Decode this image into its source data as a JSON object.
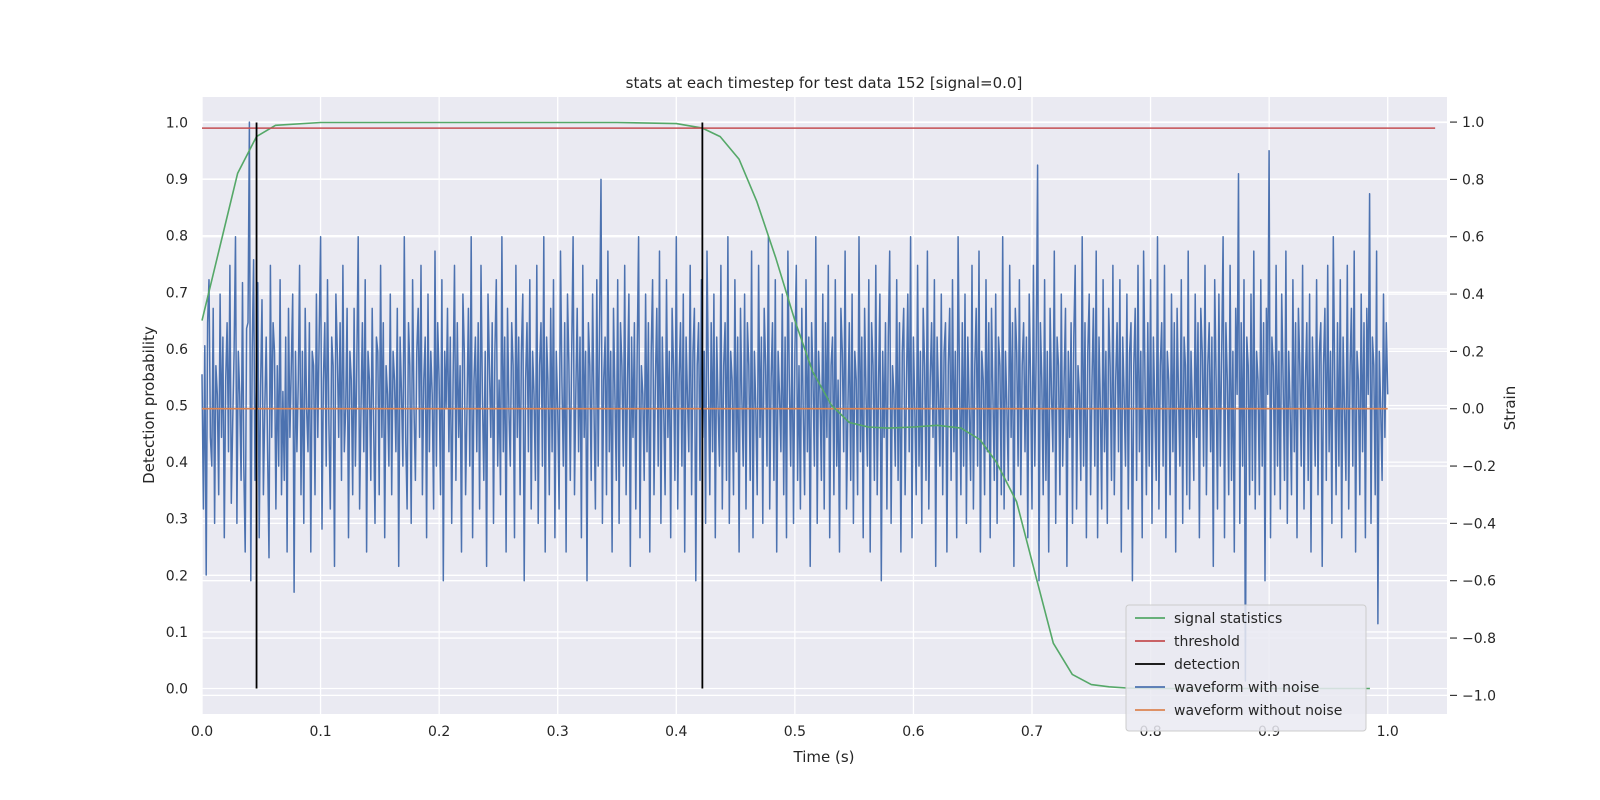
{
  "chart_data": {
    "type": "line",
    "title": "stats at each timestep for test data 152 [signal=0.0]",
    "xlabel": "Time (s)",
    "ylabel_left": "Detection probability",
    "ylabel_right": "Strain",
    "xlim": [
      0.0,
      1.05
    ],
    "ylim_left": [
      -0.045,
      1.045
    ],
    "ylim_right": [
      -1.065,
      1.0875
    ],
    "x_ticks": [
      "0.0",
      "0.1",
      "0.2",
      "0.3",
      "0.4",
      "0.5",
      "0.6",
      "0.7",
      "0.8",
      "0.9",
      "1.0"
    ],
    "y_ticks_left": [
      "0.0",
      "0.1",
      "0.2",
      "0.3",
      "0.4",
      "0.5",
      "0.6",
      "0.7",
      "0.8",
      "0.9",
      "1.0"
    ],
    "y_ticks_right": [
      "−1.0",
      "−0.8",
      "−0.6",
      "−0.4",
      "−0.2",
      "0.0",
      "0.2",
      "0.4",
      "0.6",
      "0.8",
      "1.0"
    ],
    "grid": true,
    "legend_position": "lower-right",
    "threshold": 0.99,
    "detections": [
      0.046,
      0.422
    ],
    "series": [
      {
        "name": "signal statistics",
        "axis": "left",
        "color": "#55a868",
        "x": [
          0.0,
          0.015,
          0.03,
          0.046,
          0.062,
          0.1,
          0.2,
          0.3,
          0.35,
          0.4,
          0.422,
          0.437,
          0.453,
          0.468,
          0.484,
          0.5,
          0.515,
          0.531,
          0.546,
          0.562,
          0.578,
          0.6,
          0.62,
          0.64,
          0.656,
          0.67,
          0.687,
          0.703,
          0.718,
          0.734,
          0.75,
          0.765,
          0.78,
          0.8,
          0.85,
          0.9,
          0.95,
          0.985
        ],
        "values": [
          0.65,
          0.78,
          0.91,
          0.975,
          0.995,
          1.0,
          1.0,
          1.0,
          1.0,
          0.998,
          0.99,
          0.975,
          0.935,
          0.86,
          0.76,
          0.65,
          0.56,
          0.5,
          0.47,
          0.462,
          0.46,
          0.462,
          0.465,
          0.46,
          0.44,
          0.4,
          0.33,
          0.2,
          0.08,
          0.025,
          0.007,
          0.003,
          0.001,
          0.0,
          0.0,
          0.0,
          0.0,
          0.0
        ]
      },
      {
        "name": "threshold",
        "axis": "left",
        "color": "#c44e52",
        "x": [
          0.0,
          1.04
        ],
        "values": [
          0.99,
          0.99
        ]
      },
      {
        "name": "detection",
        "axis": "left",
        "color": "#000000",
        "x": [
          0.046,
          0.422
        ],
        "values": [
          1.0,
          1.0
        ]
      },
      {
        "name": "waveform with noise",
        "axis": "right",
        "color": "#4c72b0",
        "x_range": [
          0.0,
          1.0
        ],
        "values": [
          0.12,
          -0.35,
          0.22,
          -0.58,
          0.3,
          0.45,
          -0.1,
          -0.2,
          0.35,
          -0.4,
          0.15,
          0.05,
          -0.3,
          0.4,
          -0.1,
          0.25,
          -0.45,
          0.1,
          0.3,
          -0.15,
          0.5,
          -0.33,
          -0.05,
          0.2,
          0.6,
          -0.4,
          0.2,
          0.05,
          -0.25,
          0.44,
          -0.2,
          -0.5,
          0.28,
          0.3,
          1.0,
          -0.6,
          0.2,
          0.52,
          -0.25,
          0.1,
          0.44,
          -0.45,
          0.08,
          0.38,
          -0.3,
          0.0,
          0.25,
          -0.15,
          -0.52,
          0.5,
          -0.1,
          0.3,
          0.2,
          -0.35,
          0.15,
          -0.2,
          0.45,
          -0.3,
          0.06,
          -0.25,
          0.25,
          -0.5,
          0.35,
          -0.1,
          0.15,
          0.4,
          -0.64,
          0.2,
          -0.15,
          0.1,
          0.5,
          -0.3,
          0.2,
          -0.4,
          0.35,
          0.0,
          -0.15,
          0.3,
          -0.5,
          0.2,
          0.15,
          -0.3,
          0.4,
          -0.1,
          0.26,
          0.6,
          -0.42,
          0.1,
          0.3,
          -0.2,
          0.45,
          -0.05,
          -0.35,
          0.25,
          0.15,
          -0.55,
          0.4,
          0.2,
          -0.1,
          0.3,
          -0.25,
          0.5,
          -0.15,
          0.0,
          0.35,
          -0.45,
          0.2,
          0.1,
          -0.3,
          0.35,
          -0.2,
          0.15,
          0.6,
          -0.35,
          0.0,
          0.3,
          -0.15,
          0.45,
          -0.5,
          0.2,
          0.1,
          -0.25,
          0.35,
          -0.05,
          -0.4,
          0.25,
          0.2,
          -0.3,
          0.5,
          -0.1,
          0.3,
          -0.45,
          0.15,
          0.05,
          -0.2,
          0.4,
          -0.3,
          0.2,
          0.1,
          -0.15,
          0.35,
          -0.55,
          0.25,
          0.05,
          -0.2,
          0.6,
          -0.1,
          -0.35,
          0.3,
          0.15,
          -0.4,
          0.45,
          0.0,
          -0.25,
          0.2,
          0.35,
          -0.1,
          0.5,
          -0.3,
          0.1,
          0.25,
          -0.45,
          0.4,
          -0.15,
          0.2,
          0.05,
          -0.35,
          0.55,
          -0.2,
          0.3,
          0.1,
          -0.3,
          0.45,
          -0.6,
          0.2,
          0.0,
          0.35,
          -0.15,
          0.25,
          -0.4,
          0.1,
          0.5,
          -0.25,
          0.3,
          -0.1,
          0.15,
          -0.5,
          0.4,
          0.2,
          -0.3,
          0.0,
          0.35,
          -0.2,
          0.6,
          -0.45,
          0.1,
          0.25,
          -0.15,
          0.3,
          -0.35,
          0.5,
          0.05,
          -0.25,
          0.2,
          -0.55,
          0.4,
          0.15,
          -0.1,
          0.3,
          -0.4,
          0.2,
          0.45,
          -0.2,
          0.1,
          -0.3,
          0.6,
          -0.15,
          0.25,
          -0.5,
          0.35,
          0.0,
          -0.2,
          0.3,
          0.15,
          -0.45,
          0.5,
          -0.1,
          0.25,
          -0.3,
          0.2,
          0.4,
          -0.6,
          0.1,
          0.3,
          -0.15,
          0.45,
          -0.35,
          0.2,
          0.05,
          -0.25,
          0.5,
          -0.4,
          0.15,
          0.3,
          -0.2,
          0.6,
          -0.5,
          0.25,
          0.1,
          -0.3,
          0.35,
          -0.15,
          0.45,
          -0.45,
          0.2,
          0.0,
          -0.35,
          0.55,
          0.1,
          -0.2,
          0.3,
          -0.5,
          0.4,
          0.15,
          -0.25,
          0.2,
          0.6,
          -0.3,
          0.05,
          0.35,
          -0.15,
          0.25,
          -0.45,
          0.5,
          -0.1,
          0.2,
          -0.6,
          0.3,
          0.15,
          -0.25,
          0.4,
          0.0,
          -0.35,
          0.45,
          -0.2,
          0.3,
          0.8,
          -0.4,
          0.1,
          0.25,
          -0.3,
          0.55,
          -0.15,
          0.2,
          -0.5,
          0.35,
          0.05,
          -0.25,
          0.45,
          -0.4,
          0.3,
          0.15,
          -0.2,
          0.5,
          -0.3,
          0.1,
          0.4,
          -0.55,
          0.25,
          -0.1,
          0.3,
          -0.35,
          0.2,
          0.6,
          -0.45,
          0.15,
          0.05,
          -0.25,
          0.4,
          -0.15,
          0.3,
          -0.5,
          0.2,
          0.45,
          -0.3,
          0.1,
          0.35,
          -0.2,
          0.55,
          -0.4,
          0.25,
          0.0,
          -0.3,
          0.45,
          -0.1,
          0.2,
          -0.45,
          0.35,
          0.15,
          -0.25,
          0.6,
          -0.35,
          0.1,
          0.3,
          -0.2,
          0.4,
          -0.5,
          0.25,
          0.05,
          -0.15,
          0.5,
          -0.3,
          0.2,
          0.35,
          -0.6,
          0.15,
          0.3,
          -0.25,
          0.45,
          -0.1,
          0.2,
          -0.4,
          0.55,
          0.1,
          -0.3,
          0.3,
          -0.15,
          0.4,
          -0.45,
          0.25,
          0.0,
          -0.2,
          0.5,
          -0.35,
          0.15,
          0.3,
          -0.25,
          0.6,
          -0.4,
          0.2,
          0.1,
          -0.3,
          0.45,
          -0.15,
          0.25,
          -0.5,
          0.35,
          0.05,
          -0.2,
          0.4,
          -0.35,
          0.3,
          0.15,
          -0.25,
          0.55,
          -0.45,
          0.2,
          0.0,
          -0.3,
          0.5,
          -0.1,
          0.25,
          -0.4,
          0.35,
          0.15,
          -0.2,
          0.6,
          -0.35,
          0.1,
          0.3,
          -0.25,
          0.45,
          -0.5,
          0.2,
          0.05,
          -0.15,
          0.4,
          -0.3,
          0.25,
          -0.45,
          0.55,
          0.1,
          -0.2,
          0.3,
          -0.4,
          0.2,
          0.5,
          -0.25,
          0.15,
          -0.35,
          0.35,
          0.0,
          -0.3,
          0.45,
          -0.15,
          0.25,
          -0.55,
          0.3,
          0.1,
          -0.2,
          0.6,
          -0.4,
          0.2,
          0.05,
          -0.25,
          0.4,
          -0.35,
          0.3,
          -0.1,
          0.5,
          -0.45,
          0.15,
          0.25,
          -0.3,
          0.45,
          -0.2,
          0.1,
          -0.5,
          0.35,
          0.2,
          -0.15,
          0.55,
          -0.35,
          0.0,
          0.3,
          -0.25,
          0.4,
          -0.4,
          0.2,
          0.1,
          -0.3,
          0.6,
          -0.15,
          0.25,
          -0.45,
          0.35,
          0.05,
          -0.2,
          0.45,
          -0.5,
          0.3,
          0.15,
          -0.25,
          0.5,
          -0.3,
          0.1,
          0.4,
          -0.6,
          0.2,
          -0.1,
          0.3,
          -0.35,
          0.25,
          0.55,
          -0.4,
          0.15,
          0.05,
          -0.2,
          0.45,
          -0.25,
          0.3,
          -0.5,
          0.2,
          0.35,
          -0.3,
          0.1,
          0.4,
          -0.15,
          0.6,
          -0.45,
          0.25,
          0.0,
          -0.3,
          0.5,
          -0.2,
          0.2,
          -0.4,
          0.35,
          0.15,
          -0.25,
          0.55,
          -0.35,
          0.1,
          0.3,
          -0.1,
          0.45,
          -0.55,
          0.25,
          0.05,
          -0.2,
          0.4,
          -0.3,
          0.2,
          0.3,
          -0.5,
          0.15,
          0.35,
          -0.25,
          0.45,
          -0.15,
          0.2,
          -0.45,
          0.6,
          0.1,
          -0.3,
          0.3,
          -0.2,
          0.4,
          -0.4,
          0.25,
          0.0,
          -0.25,
          0.5,
          -0.35,
          0.15,
          0.35,
          -0.2,
          0.55,
          -0.5,
          0.2,
          0.1,
          -0.3,
          0.45,
          -0.15,
          0.3,
          -0.45,
          0.35,
          0.05,
          -0.25,
          0.4,
          -0.4,
          0.25,
          0.15,
          -0.3,
          0.6,
          -0.35,
          0.2,
          0.0,
          -0.25,
          0.5,
          -0.1,
          0.3,
          -0.55,
          0.35,
          0.2,
          -0.2,
          0.45,
          -0.3,
          0.15,
          0.3,
          -0.15,
          0.25,
          -0.45,
          0.4,
          0.1,
          -0.35,
          0.5,
          -0.2,
          0.2,
          0.85,
          -0.6,
          0.3,
          0.1,
          -0.3,
          0.45,
          -0.25,
          0.2,
          -0.5,
          0.35,
          0.05,
          -0.15,
          0.55,
          -0.4,
          0.25,
          0.15,
          -0.3,
          0.4,
          -0.2,
          0.1,
          0.35,
          -0.55,
          0.2,
          -0.1,
          0.3,
          -0.4,
          0.25,
          0.5,
          -0.35,
          0.15,
          0.05,
          -0.25,
          0.6,
          -0.2,
          0.3,
          -0.45,
          0.2,
          0.4,
          -0.3,
          0.1,
          0.35,
          -0.2,
          0.55,
          -0.45,
          0.25,
          0.0,
          -0.35,
          0.45,
          -0.15,
          0.2,
          -0.4,
          0.35,
          0.15,
          -0.25,
          0.5,
          -0.3,
          0.1,
          0.3,
          -0.15,
          0.45,
          -0.5,
          0.25,
          0.05,
          -0.2,
          0.4,
          -0.35,
          0.2,
          0.3,
          -0.6,
          0.15,
          0.35,
          -0.25,
          0.5,
          -0.15,
          0.2,
          -0.45,
          0.55,
          0.1,
          -0.3,
          0.3,
          -0.2,
          0.45,
          -0.4,
          0.25,
          0.0,
          -0.25,
          0.6,
          -0.35,
          0.15,
          0.3,
          -0.2,
          0.5,
          -0.45,
          0.2,
          0.1,
          -0.3,
          0.4,
          -0.15,
          0.3,
          -0.5,
          0.35,
          0.05,
          -0.2,
          0.45,
          -0.4,
          0.25,
          0.15,
          -0.3,
          0.55,
          -0.35,
          0.2,
          0.0,
          -0.25,
          0.4,
          -0.1,
          0.3,
          -0.45,
          0.35,
          0.2,
          -0.2,
          0.5,
          -0.3,
          0.15,
          0.3,
          -0.15,
          0.25,
          -0.55,
          0.45,
          0.1,
          -0.35,
          0.4,
          -0.2,
          0.2,
          0.6,
          -0.45,
          0.3,
          0.1,
          -0.3,
          0.5,
          -0.25,
          0.2,
          -0.5,
          0.35,
          0.05,
          0.82,
          -0.4,
          0.3,
          -0.2,
          0.45,
          -0.95,
          0.25,
          0.15,
          -0.3,
          0.4,
          -0.25,
          0.55,
          -0.35,
          0.2,
          0.1,
          -0.3,
          0.45,
          -0.2,
          0.3,
          -0.6,
          0.35,
          0.05,
          0.9,
          -0.45,
          0.25,
          0.15,
          -0.3,
          0.5,
          -0.2,
          0.2,
          -0.35,
          0.4,
          0.1,
          -0.25,
          0.55,
          -0.4,
          0.2,
          0.0,
          -0.3,
          0.45,
          -0.15,
          0.3,
          -0.45,
          0.35,
          0.15,
          -0.2,
          0.5,
          -0.35,
          0.1,
          0.3,
          -0.25,
          0.4,
          -0.5,
          0.25,
          0.05,
          -0.2,
          0.45,
          -0.3,
          0.2,
          0.3,
          -0.55,
          0.15,
          0.35,
          -0.25,
          0.5,
          -0.15,
          0.2,
          -0.4,
          0.6,
          0.1,
          -0.3,
          0.3,
          -0.2,
          0.45,
          -0.45,
          0.25,
          0.0,
          -0.25,
          0.5,
          -0.35,
          0.15,
          0.35,
          -0.2,
          0.55,
          -0.5,
          0.2,
          0.1,
          -0.3,
          0.4,
          -0.15,
          0.3,
          -0.45,
          0.35,
          0.05,
          0.75,
          -0.4,
          0.25,
          0.15,
          -0.3,
          0.55,
          -0.75,
          0.2,
          0.0,
          -0.25,
          0.4,
          -0.1,
          0.3,
          0.05
        ]
      },
      {
        "name": "waveform without noise",
        "axis": "right",
        "color": "#dd8452",
        "x": [
          0.0,
          1.0
        ],
        "values": [
          0.0,
          0.0
        ]
      }
    ]
  }
}
